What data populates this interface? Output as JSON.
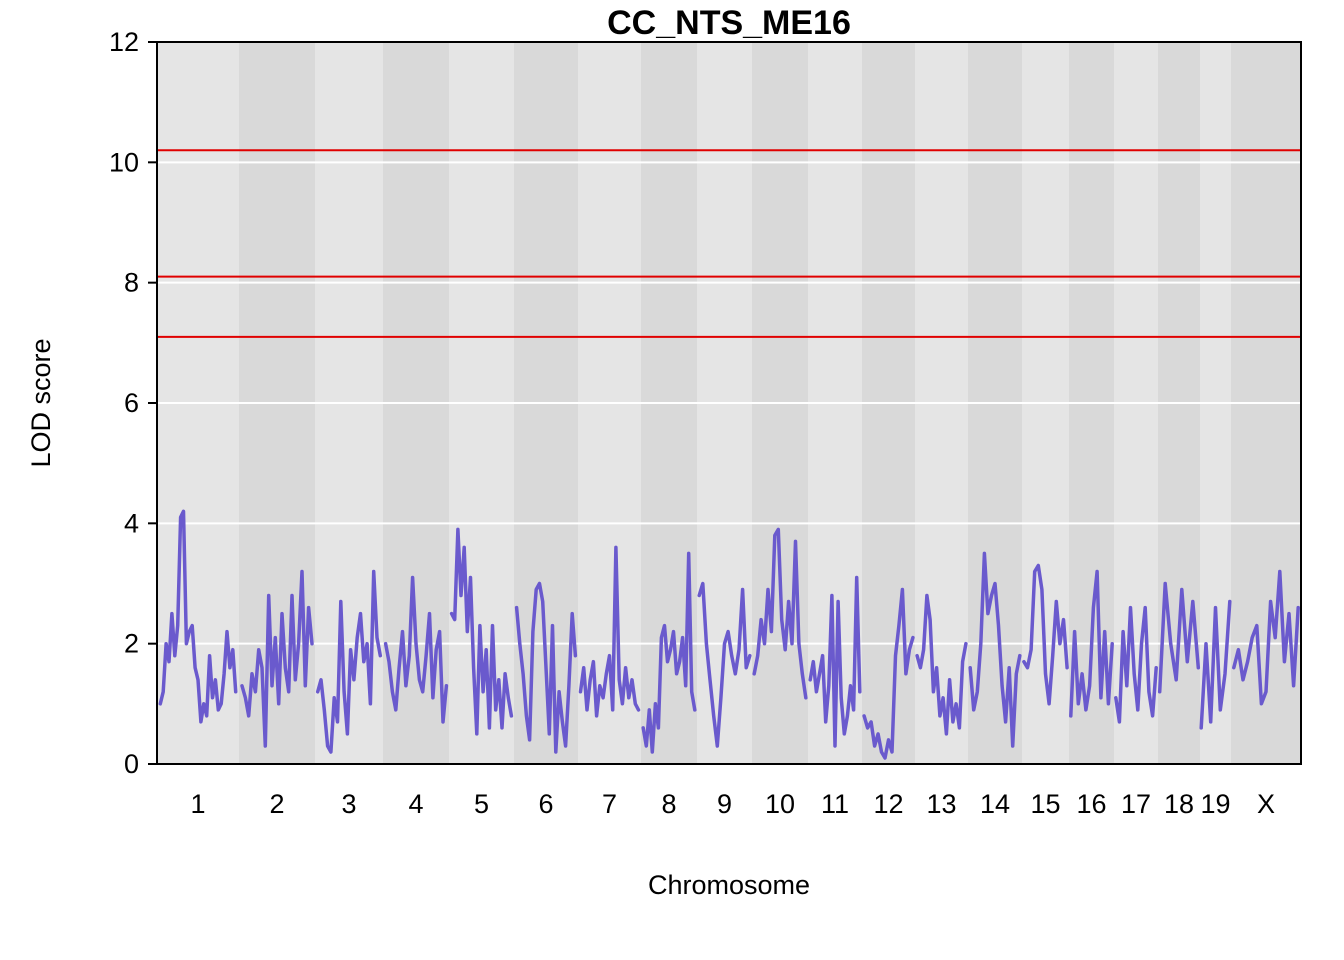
{
  "chart_data": {
    "type": "line",
    "title": "CC_NTS_ME16",
    "xlabel": "Chromosome",
    "ylabel": "LOD score",
    "ylim": [
      0,
      12
    ],
    "yticks": [
      "0",
      "2",
      "4",
      "6",
      "8",
      "10",
      "12"
    ],
    "chromosomes": [
      {
        "label": "1",
        "profile": [
          1.0,
          1.2,
          2.0,
          1.7,
          2.5,
          1.8,
          2.3,
          4.1,
          4.2,
          2.0,
          2.2,
          2.3,
          1.6,
          1.4,
          0.7,
          1.0,
          0.8,
          1.8,
          1.1,
          1.4,
          0.9,
          1.0,
          1.5,
          2.2,
          1.6,
          1.9,
          1.2
        ]
      },
      {
        "label": "2",
        "profile": [
          1.3,
          1.1,
          0.8,
          1.5,
          1.2,
          1.9,
          1.6,
          0.3,
          2.8,
          1.3,
          2.1,
          1.0,
          2.5,
          1.6,
          1.2,
          2.8,
          1.4,
          2.0,
          3.2,
          1.3,
          2.6,
          2.0
        ]
      },
      {
        "label": "3",
        "profile": [
          1.2,
          1.4,
          0.9,
          0.3,
          0.2,
          1.1,
          0.7,
          2.7,
          1.2,
          0.5,
          1.9,
          1.4,
          2.1,
          2.5,
          1.7,
          2.0,
          1.0,
          3.2,
          2.1,
          1.8
        ]
      },
      {
        "label": "4",
        "profile": [
          2.0,
          1.7,
          1.2,
          0.9,
          1.6,
          2.2,
          1.3,
          1.8,
          3.1,
          2.0,
          1.4,
          1.2,
          1.8,
          2.5,
          1.1,
          1.9,
          2.2,
          0.7,
          1.3
        ]
      },
      {
        "label": "5",
        "profile": [
          2.5,
          2.4,
          3.9,
          2.8,
          3.6,
          2.2,
          3.1,
          1.6,
          0.5,
          2.3,
          1.2,
          1.9,
          0.6,
          2.3,
          0.9,
          1.4,
          0.6,
          1.5,
          1.1,
          0.8
        ]
      },
      {
        "label": "6",
        "profile": [
          2.6,
          2.0,
          1.5,
          0.8,
          0.4,
          2.2,
          2.9,
          3.0,
          2.7,
          1.6,
          0.5,
          2.3,
          0.2,
          1.2,
          0.7,
          0.3,
          1.3,
          2.5,
          1.8
        ]
      },
      {
        "label": "7",
        "profile": [
          1.2,
          1.6,
          0.9,
          1.4,
          1.7,
          0.8,
          1.3,
          1.1,
          1.5,
          1.8,
          0.9,
          3.6,
          1.4,
          1.0,
          1.6,
          1.1,
          1.4,
          1.0,
          0.9
        ]
      },
      {
        "label": "8",
        "profile": [
          0.6,
          0.3,
          0.9,
          0.2,
          1.0,
          0.6,
          2.1,
          2.3,
          1.7,
          1.9,
          2.2,
          1.5,
          1.7,
          2.1,
          1.3,
          3.5,
          1.2,
          0.9
        ]
      },
      {
        "label": "9",
        "profile": [
          2.8,
          3.0,
          2.0,
          1.4,
          0.8,
          0.3,
          1.1,
          2.0,
          2.2,
          1.8,
          1.5,
          1.9,
          2.9,
          1.6,
          1.8
        ]
      },
      {
        "label": "10",
        "profile": [
          1.5,
          1.8,
          2.4,
          2.0,
          2.9,
          2.2,
          3.8,
          3.9,
          2.4,
          1.9,
          2.7,
          2.0,
          3.7,
          2.0,
          1.5,
          1.1
        ]
      },
      {
        "label": "11",
        "profile": [
          1.4,
          1.7,
          1.2,
          1.5,
          1.8,
          0.7,
          1.3,
          2.8,
          0.3,
          2.7,
          1.1,
          0.5,
          0.8,
          1.3,
          0.9,
          3.1,
          1.2
        ]
      },
      {
        "label": "12",
        "profile": [
          0.8,
          0.6,
          0.7,
          0.3,
          0.5,
          0.2,
          0.1,
          0.4,
          0.2,
          1.8,
          2.3,
          2.9,
          1.5,
          1.9,
          2.1
        ]
      },
      {
        "label": "13",
        "profile": [
          1.8,
          1.6,
          1.9,
          2.8,
          2.4,
          1.2,
          1.6,
          0.8,
          1.1,
          0.5,
          1.4,
          0.7,
          1.0,
          0.6,
          1.7,
          2.0
        ]
      },
      {
        "label": "14",
        "profile": [
          1.6,
          0.9,
          1.2,
          2.0,
          3.5,
          2.5,
          2.8,
          3.0,
          2.3,
          1.3,
          0.7,
          1.6,
          0.3,
          1.5,
          1.8
        ]
      },
      {
        "label": "15",
        "profile": [
          1.7,
          1.6,
          1.9,
          3.2,
          3.3,
          2.9,
          1.5,
          1.0,
          1.8,
          2.7,
          2.0,
          2.4,
          1.6
        ]
      },
      {
        "label": "16",
        "profile": [
          0.8,
          2.2,
          1.0,
          1.5,
          0.9,
          1.3,
          2.6,
          3.2,
          1.1,
          2.2,
          1.0,
          2.0
        ]
      },
      {
        "label": "17",
        "profile": [
          1.1,
          0.7,
          2.2,
          1.3,
          2.6,
          1.5,
          0.9,
          2.0,
          2.6,
          1.2,
          0.8,
          1.6
        ]
      },
      {
        "label": "18",
        "profile": [
          1.2,
          3.0,
          2.0,
          1.4,
          2.9,
          1.7,
          2.7,
          1.6
        ]
      },
      {
        "label": "19",
        "profile": [
          0.6,
          2.0,
          0.7,
          2.6,
          0.9,
          1.5,
          2.7
        ]
      },
      {
        "label": "X",
        "profile": [
          1.6,
          1.9,
          1.4,
          1.7,
          2.1,
          2.3,
          1.0,
          1.2,
          2.7,
          2.1,
          3.2,
          1.7,
          2.5,
          1.3,
          2.6
        ]
      }
    ],
    "thresholds": [
      10.2,
      8.1,
      7.1
    ],
    "line_color": "#6a5acd",
    "threshold_color": "#e00000",
    "band_colors": [
      "#e5e5e5",
      "#d9d9d9"
    ],
    "grid": true
  }
}
